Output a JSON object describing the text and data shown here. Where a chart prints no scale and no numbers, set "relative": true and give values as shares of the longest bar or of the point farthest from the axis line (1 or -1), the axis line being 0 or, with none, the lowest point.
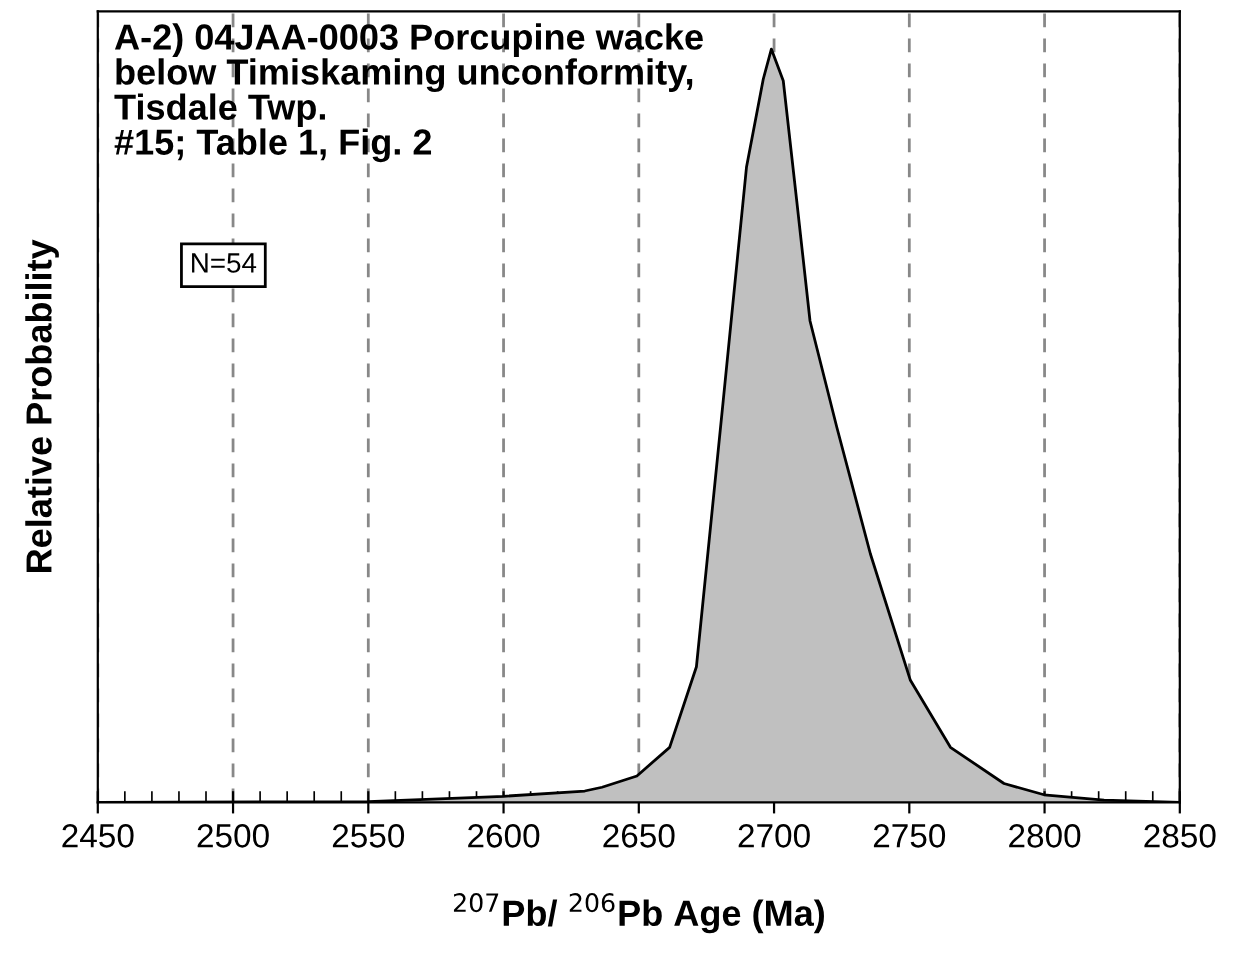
{
  "chart_data": {
    "type": "area",
    "title": "A-2) 04JAA-0003 Porcupine wacke\nbelow Timiskaming unconformity,\nTisdale Twp.\n#15; Table 1, Fig. 2",
    "xlabel": "$^{207}$Pb/ $^{206}$Pb Age (Ma)",
    "ylabel": "Relative Probability",
    "annotations": [
      "N=54"
    ],
    "relative": true,
    "series": [
      {
        "color": "#c0c0c0",
        "x": [
          2450,
          2550,
          2600,
          2630,
          2636.4,
          2649.3,
          2661.4,
          2671.3,
          2681.2,
          2689.8,
          2696,
          2699,
          2703.4,
          2708.4,
          2713.3,
          2723.2,
          2735.6,
          2750.4,
          2765.2,
          2785,
          2799.8,
          2822,
          2850
        ],
        "values": [
          0,
          0.001,
          0.008,
          0.015,
          0.02,
          0.035,
          0.073,
          0.18,
          0.533,
          0.843,
          0.96,
          1,
          0.958,
          0.798,
          0.639,
          0.498,
          0.33,
          0.162,
          0.073,
          0.025,
          0.01,
          0.003,
          0
        ]
      }
    ],
    "xlim": [
      2450,
      2850
    ],
    "xticks": [
      2450,
      2500,
      2550,
      2600,
      2650,
      2700,
      2750,
      2800,
      2850
    ],
    "grid": "x",
    "line_style": "solid"
  }
}
